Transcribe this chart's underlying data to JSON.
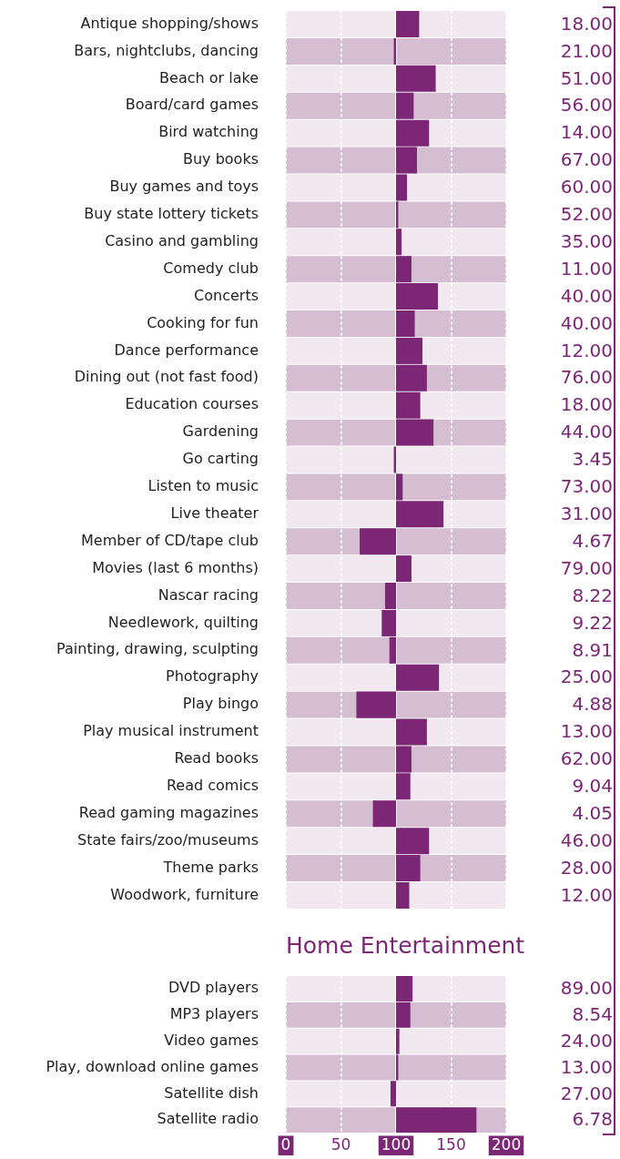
{
  "chart_data": [
    {
      "type": "bar",
      "orientation": "horizontal",
      "categories": [
        "Antique shopping/shows",
        "Bars, nightclubs, dancing",
        "Beach or lake",
        "Board/card games",
        "Bird watching",
        "Buy books",
        "Buy games and toys",
        "Buy state lottery tickets",
        "Casino and gambling",
        "Comedy club",
        "Concerts",
        "Cooking for fun",
        "Dance performance",
        "Dining out (not fast food)",
        "Education courses",
        "Gardening",
        "Go carting",
        "Listen to music",
        "Live theater",
        "Member of CD/tape club",
        "Movies (last 6 months)",
        "Nascar racing",
        "Needlework, quilting",
        "Painting, drawing, sculpting",
        "Photography",
        "Play bingo",
        "Play musical instrument",
        "Read books",
        "Read comics",
        "Read gaming magazines",
        "State fairs/zoo/museums",
        "Theme parks",
        "Woodwork, furniture"
      ],
      "base": [
        100,
        100,
        100,
        100,
        100,
        100,
        100,
        100,
        100,
        100,
        100,
        100,
        100,
        100,
        100,
        100,
        100,
        100,
        100,
        100,
        100,
        100,
        100,
        100,
        100,
        100,
        100,
        100,
        100,
        100,
        100,
        100,
        100
      ],
      "values": [
        21,
        -2,
        36,
        16,
        30,
        19,
        10,
        2,
        5,
        14,
        38,
        17,
        24,
        28,
        22,
        34,
        -2,
        6,
        43,
        -33,
        14,
        -10,
        -13,
        -6,
        39,
        -36,
        28,
        14,
        13,
        -21,
        30,
        22,
        12
      ],
      "annotations": [
        "18.00",
        "21.00",
        "51.00",
        "56.00",
        "14.00",
        "67.00",
        "60.00",
        "52.00",
        "35.00",
        "11.00",
        "40.00",
        "40.00",
        "12.00",
        "76.00",
        "18.00",
        "44.00",
        "3.45",
        "73.00",
        "31.00",
        "4.67",
        "79.00",
        "8.22",
        "9.22",
        "8.91",
        "25.00",
        "4.88",
        "13.00",
        "62.00",
        "9.04",
        "4.05",
        "46.00",
        "28.00",
        "12.00"
      ],
      "color": "#7b2775",
      "xlim": [
        0,
        200
      ],
      "xticks": [
        0,
        50,
        100,
        150,
        200
      ],
      "grid": "x",
      "tick_labels": "y",
      "legend": false,
      "ref_lines": [
        {
          "axis": "x",
          "value": 100,
          "color": "#ffffff"
        }
      ]
    },
    {
      "type": "bar",
      "orientation": "horizontal",
      "title": "Home Entertainment",
      "categories": [
        "DVD players",
        "MP3 players",
        "Video games",
        "Play, download online games",
        "Satellite dish",
        "Satellite radio"
      ],
      "base": [
        100,
        100,
        100,
        100,
        100,
        100
      ],
      "values": [
        15,
        13,
        3,
        2,
        -5,
        73
      ],
      "annotations": [
        "89.00",
        "8.54",
        "24.00",
        "13.00",
        "27.00",
        "6.78"
      ],
      "color": "#7b2775",
      "xlim": [
        0,
        200
      ],
      "xticks": [
        0,
        50,
        100,
        150,
        200
      ],
      "grid": "x",
      "legend": false,
      "ref_lines": [
        {
          "axis": "x",
          "value": 100,
          "color": "#ffffff"
        }
      ]
    }
  ]
}
